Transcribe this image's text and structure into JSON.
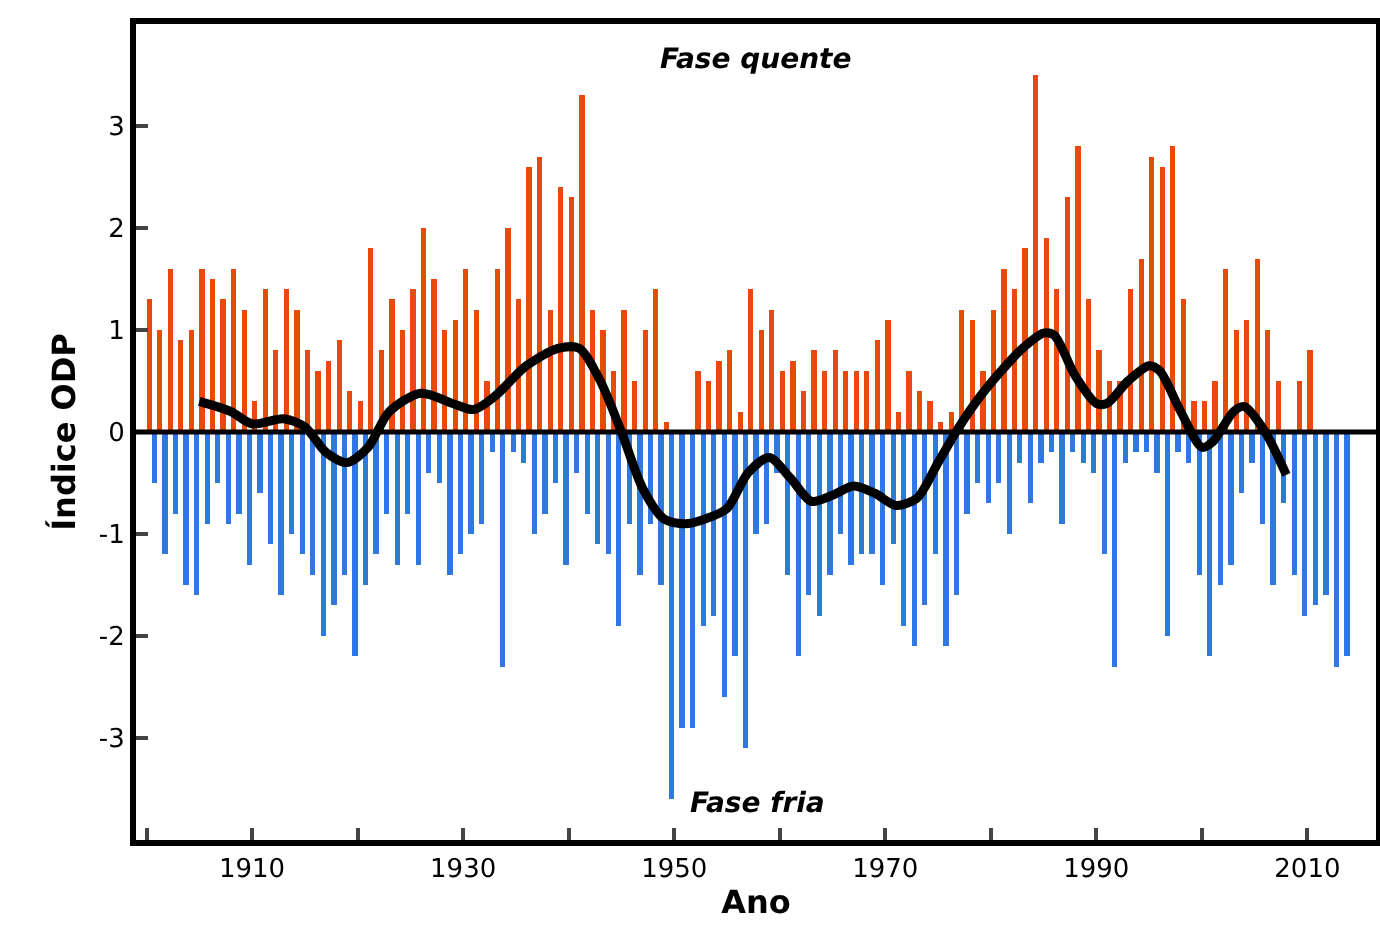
{
  "chart_data": {
    "type": "bar",
    "xlabel": "Ano",
    "ylabel": "Índice ODP",
    "annotations": [
      "Fase quente",
      "Fase fria"
    ],
    "xlim": [
      1899,
      2016.5
    ],
    "xticks": [
      {
        "value": 1900,
        "label": null
      },
      1910,
      {
        "value": 1920,
        "label": null
      },
      1930,
      {
        "value": 1940,
        "label": null
      },
      1950,
      {
        "value": 1960,
        "label": null
      },
      1970,
      {
        "value": 1980,
        "label": null
      },
      1990,
      {
        "value": 2000,
        "label": null
      },
      2010
    ],
    "ylim": [
      -4,
      4
    ],
    "yticks": [
      -3,
      -2,
      -1,
      0,
      1,
      2,
      3
    ],
    "grid": false,
    "ref_lines": [
      {
        "axis": "y",
        "value": 0,
        "color": "#000000"
      }
    ],
    "series": [
      {
        "color": "#e84a0c",
        "x": [
          1900.25,
          1901.25,
          1902.25,
          1903.25,
          1904.25,
          1905.25,
          1906.25,
          1907.25,
          1908.25,
          1909.25,
          1910.25,
          1911.25,
          1912.25,
          1913.25,
          1914.25,
          1915.25,
          1916.25,
          1917.25,
          1918.25,
          1919.25,
          1920.25,
          1921.25,
          1922.25,
          1923.25,
          1924.25,
          1925.25,
          1926.25,
          1927.25,
          1928.25,
          1929.25,
          1930.25,
          1931.25,
          1932.25,
          1933.25,
          1934.25,
          1935.25,
          1936.25,
          1937.25,
          1938.25,
          1939.25,
          1940.25,
          1941.25,
          1942.25,
          1943.25,
          1944.25,
          1945.25,
          1946.25,
          1947.25,
          1948.25,
          1949.25,
          1950.25,
          1951.25,
          1952.25,
          1953.25,
          1954.25,
          1955.25,
          1956.25,
          1957.25,
          1958.25,
          1959.25,
          1960.25,
          1961.25,
          1962.25,
          1963.25,
          1964.25,
          1965.25,
          1966.25,
          1967.25,
          1968.25,
          1969.25,
          1970.25,
          1971.25,
          1972.25,
          1973.25,
          1974.25,
          1975.25,
          1976.25,
          1977.25,
          1978.25,
          1979.25,
          1980.25,
          1981.25,
          1982.25,
          1983.25,
          1984.25,
          1985.25,
          1986.25,
          1987.25,
          1988.25,
          1989.25,
          1990.25,
          1991.25,
          1992.25,
          1993.25,
          1994.25,
          1995.25,
          1996.25,
          1997.25,
          1998.25,
          1999.25,
          2000.25,
          2001.25,
          2002.25,
          2003.25,
          2004.25,
          2005.25,
          2006.25,
          2007.25,
          2008.25,
          2009.25,
          2010.25
        ],
        "values": [
          1.3,
          1.0,
          1.6,
          0.9,
          1.0,
          1.6,
          1.5,
          1.3,
          1.6,
          1.2,
          0.3,
          1.4,
          0.8,
          1.4,
          1.2,
          0.8,
          0.6,
          0.7,
          0.9,
          0.4,
          0.3,
          1.8,
          0.8,
          1.3,
          1.0,
          1.4,
          2.0,
          1.5,
          1.0,
          1.1,
          1.6,
          1.2,
          0.5,
          1.6,
          2.0,
          1.3,
          2.6,
          2.7,
          1.2,
          2.4,
          2.3,
          3.3,
          1.2,
          1.0,
          0.6,
          1.2,
          0.5,
          1.0,
          1.4,
          0.1,
          null,
          null,
          0.6,
          0.5,
          0.7,
          0.8,
          0.2,
          1.4,
          1.0,
          1.2,
          0.6,
          0.7,
          0.4,
          0.8,
          0.6,
          0.8,
          0.6,
          0.6,
          0.6,
          0.9,
          1.1,
          0.2,
          0.6,
          0.4,
          0.3,
          0.1,
          0.2,
          1.2,
          1.1,
          0.6,
          1.2,
          1.6,
          1.4,
          1.8,
          3.5,
          1.9,
          1.4,
          2.3,
          2.8,
          1.3,
          0.8,
          0.5,
          0.5,
          1.4,
          1.7,
          2.7,
          2.6,
          2.8,
          1.3,
          0.3,
          0.3,
          0.5,
          1.6,
          1.0,
          1.1,
          1.7,
          1.0,
          0.5,
          null,
          0.5,
          0.8
        ]
      },
      {
        "color": "#2f78e0",
        "x": [
          1900.75,
          1901.75,
          1902.75,
          1903.75,
          1904.75,
          1905.75,
          1906.75,
          1907.75,
          1908.75,
          1909.75,
          1910.75,
          1911.75,
          1912.75,
          1913.75,
          1914.75,
          1915.75,
          1916.75,
          1917.75,
          1918.75,
          1919.75,
          1920.75,
          1921.75,
          1922.75,
          1923.75,
          1924.75,
          1925.75,
          1926.75,
          1927.75,
          1928.75,
          1929.75,
          1930.75,
          1931.75,
          1932.75,
          1933.75,
          1934.75,
          1935.75,
          1936.75,
          1937.75,
          1938.75,
          1939.75,
          1940.75,
          1941.75,
          1942.75,
          1943.75,
          1944.75,
          1945.75,
          1946.75,
          1947.75,
          1948.75,
          1949.75,
          1950.75,
          1951.75,
          1952.75,
          1953.75,
          1954.75,
          1955.75,
          1956.75,
          1957.75,
          1958.75,
          1959.75,
          1960.75,
          1961.75,
          1962.75,
          1963.75,
          1964.75,
          1965.75,
          1966.75,
          1967.75,
          1968.75,
          1969.75,
          1970.75,
          1971.75,
          1972.75,
          1973.75,
          1974.75,
          1975.75,
          1976.75,
          1977.75,
          1978.75,
          1979.75,
          1980.75,
          1981.75,
          1982.75,
          1983.75,
          1984.75,
          1985.75,
          1986.75,
          1987.75,
          1988.75,
          1989.75,
          1990.75,
          1991.75,
          1992.75,
          1993.75,
          1994.75,
          1995.75,
          1996.75,
          1997.75,
          1998.75,
          1999.75,
          2000.75,
          2001.75,
          2002.75,
          2003.75,
          2004.75,
          2005.75,
          2006.75,
          2007.75,
          2008.75,
          2009.75,
          2010.75,
          2011.75,
          2012.75,
          2013.75
        ],
        "values": [
          -0.5,
          -1.2,
          -0.8,
          -1.5,
          -1.6,
          -0.9,
          -0.5,
          -0.9,
          -0.8,
          -1.3,
          -0.6,
          -1.1,
          -1.6,
          -1.0,
          -1.2,
          -1.4,
          -2.0,
          -1.7,
          -1.4,
          -2.2,
          -1.5,
          -1.2,
          -0.8,
          -1.3,
          -0.8,
          -1.3,
          -0.4,
          -0.5,
          -1.4,
          -1.2,
          -1.0,
          -0.9,
          -0.2,
          -2.3,
          -0.2,
          -0.3,
          -1.0,
          -0.8,
          -0.5,
          -1.3,
          -0.4,
          -0.8,
          -1.1,
          -1.2,
          -1.9,
          -0.9,
          -1.4,
          -0.9,
          -1.5,
          -3.6,
          -2.9,
          -2.9,
          -1.9,
          -1.8,
          -2.6,
          -2.2,
          -3.1,
          -1.0,
          -0.9,
          -0.4,
          -1.4,
          -2.2,
          -1.6,
          -1.8,
          -1.4,
          -1.0,
          -1.3,
          -1.2,
          -1.2,
          -1.5,
          -1.1,
          -1.9,
          -2.1,
          -1.7,
          -1.2,
          -2.1,
          -1.6,
          -0.8,
          -0.5,
          -0.7,
          -0.5,
          -1.0,
          -0.3,
          -0.7,
          -0.3,
          -0.2,
          -0.9,
          -0.2,
          -0.3,
          -0.4,
          -1.2,
          -2.3,
          -0.3,
          -0.2,
          -0.2,
          -0.4,
          -2.0,
          -0.2,
          -0.3,
          -1.4,
          -2.2,
          -1.5,
          -1.3,
          -0.6,
          -0.3,
          -0.9,
          -1.5,
          -0.7,
          -1.4,
          -1.8,
          -1.7,
          -1.6,
          -2.3,
          -2.2
        ]
      },
      {
        "type": "line",
        "color": "#000000",
        "marker": "none",
        "line_style": "solid",
        "x": [
          1905,
          1908,
          1910,
          1913,
          1915,
          1917,
          1919,
          1921,
          1923,
          1926,
          1929,
          1931,
          1933,
          1936,
          1939,
          1941,
          1943,
          1945,
          1947,
          1949,
          1951,
          1953,
          1955,
          1957,
          1959,
          1961,
          1963,
          1965,
          1967,
          1969,
          1971,
          1973,
          1975,
          1977,
          1979,
          1981,
          1983,
          1985,
          1986,
          1988,
          1990,
          1991,
          1993,
          1995,
          1996,
          1998,
          2000,
          2001,
          2003,
          2004,
          2006,
          2008
        ],
        "values": [
          0.3,
          0.2,
          0.08,
          0.13,
          0.05,
          -0.2,
          -0.3,
          -0.15,
          0.2,
          0.38,
          0.28,
          0.22,
          0.35,
          0.65,
          0.82,
          0.82,
          0.5,
          0.0,
          -0.55,
          -0.85,
          -0.9,
          -0.85,
          -0.75,
          -0.4,
          -0.25,
          -0.45,
          -0.68,
          -0.62,
          -0.53,
          -0.6,
          -0.72,
          -0.65,
          -0.3,
          0.05,
          0.35,
          0.6,
          0.82,
          0.97,
          0.95,
          0.55,
          0.28,
          0.28,
          0.5,
          0.65,
          0.6,
          0.2,
          -0.15,
          -0.1,
          0.2,
          0.25,
          0.0,
          -0.42
        ]
      }
    ]
  }
}
